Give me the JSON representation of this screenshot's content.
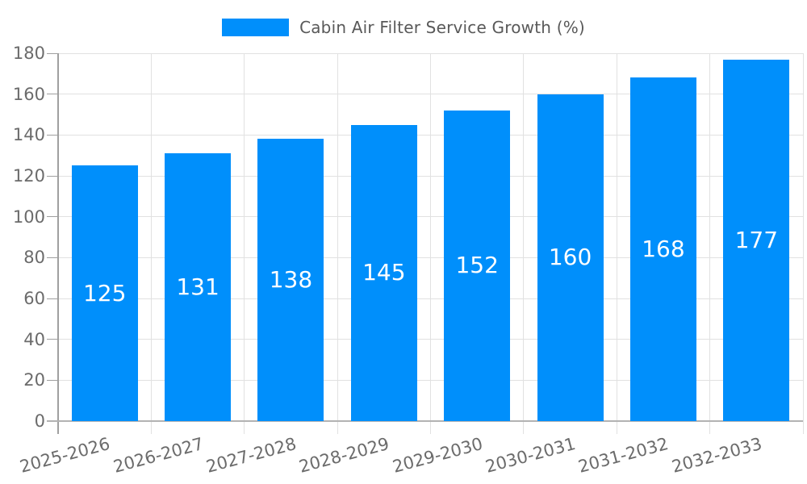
{
  "chart_data": {
    "type": "bar",
    "title": "Cabin Air Filter Service Growth (%)",
    "xlabel": "",
    "ylabel": "",
    "categories": [
      "2025-2026",
      "2026-2027",
      "2027-2028",
      "2028-2029",
      "2029-2030",
      "2030-2031",
      "2031-2032",
      "2032-2033"
    ],
    "values": [
      125,
      131,
      138,
      145,
      152,
      160,
      168,
      177
    ],
    "value_labels": [
      "125",
      "131",
      "138",
      "145",
      "152",
      "160",
      "168",
      "177"
    ],
    "ylim": [
      0,
      180
    ],
    "yticks": [
      0,
      20,
      40,
      60,
      80,
      100,
      120,
      140,
      160,
      180
    ],
    "grid": "both",
    "legend_position": "top",
    "colors": {
      "bar": "#008FFB",
      "grid": "#e1e1e1",
      "axis": "#9f9f9f",
      "baseline": "#b3b3b3",
      "tick_label": "#6b6b6b",
      "legend_text": "#595959",
      "value_label": "#ffffff"
    }
  }
}
